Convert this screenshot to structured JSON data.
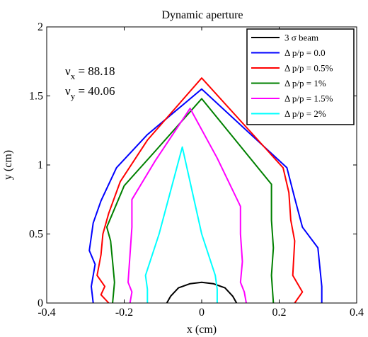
{
  "chart_data": {
    "type": "line",
    "title": "Dynamic aperture",
    "xlabel": "x (cm)",
    "ylabel": "y (cm)",
    "xlim": [
      -0.4,
      0.4
    ],
    "ylim": [
      0,
      2
    ],
    "xticks": [
      -0.4,
      -0.2,
      0,
      0.2,
      0.4
    ],
    "xtick_labels": [
      "-0.4",
      "-0.2",
      "0",
      "0.2",
      "0.4"
    ],
    "yticks": [
      0,
      0.5,
      1,
      1.5,
      2
    ],
    "ytick_labels": [
      "0",
      "0.5",
      "1",
      "1.5",
      "2"
    ],
    "grid": false,
    "legend_position": "top-right",
    "annotations": [
      {
        "symbol": "ν",
        "sub": "x",
        "rest": " = 88.18"
      },
      {
        "symbol": "ν",
        "sub": "y",
        "rest": " = 40.06"
      }
    ],
    "series": [
      {
        "name": "3 σ beam",
        "color": "#000000",
        "x": [
          -0.09,
          -0.08,
          -0.06,
          -0.03,
          0.0,
          0.03,
          0.06,
          0.08,
          0.09
        ],
        "y": [
          0.0,
          0.05,
          0.11,
          0.14,
          0.15,
          0.14,
          0.11,
          0.05,
          0.0
        ]
      },
      {
        "name": "Δ p/p = 0.0",
        "color": "#0000ff",
        "x": [
          -0.28,
          -0.285,
          -0.275,
          -0.29,
          -0.285,
          -0.28,
          -0.26,
          -0.22,
          -0.14,
          0.0,
          0.22,
          0.24,
          0.26,
          0.3,
          0.31,
          0.31
        ],
        "y": [
          0.0,
          0.12,
          0.28,
          0.38,
          0.48,
          0.58,
          0.74,
          0.98,
          1.22,
          1.55,
          0.98,
          0.76,
          0.55,
          0.4,
          0.12,
          0.0
        ]
      },
      {
        "name": "Δ p/p = 0.5%",
        "color": "#ff0000",
        "x": [
          -0.24,
          -0.26,
          -0.25,
          -0.27,
          -0.26,
          -0.255,
          -0.24,
          -0.21,
          -0.14,
          0.0,
          0.21,
          0.225,
          0.23,
          0.24,
          0.235,
          0.26,
          0.24
        ],
        "y": [
          0.0,
          0.06,
          0.12,
          0.2,
          0.35,
          0.5,
          0.65,
          0.88,
          1.18,
          1.63,
          0.98,
          0.8,
          0.6,
          0.45,
          0.2,
          0.08,
          0.0
        ]
      },
      {
        "name": "Δ p/p = 1%",
        "color": "#008000",
        "x": [
          -0.23,
          -0.225,
          -0.23,
          -0.235,
          -0.245,
          -0.2,
          -0.12,
          0.0,
          0.18,
          0.18,
          0.185,
          0.18,
          0.185
        ],
        "y": [
          0.0,
          0.15,
          0.3,
          0.45,
          0.55,
          0.85,
          1.1,
          1.48,
          0.86,
          0.6,
          0.4,
          0.2,
          0.0
        ]
      },
      {
        "name": "Δ p/p = 1.5%",
        "color": "#ff00ff",
        "x": [
          -0.185,
          -0.18,
          -0.19,
          -0.185,
          -0.18,
          -0.18,
          -0.12,
          -0.03,
          0.04,
          0.1,
          0.1,
          0.105,
          0.1,
          0.11,
          0.115
        ],
        "y": [
          0.0,
          0.08,
          0.15,
          0.35,
          0.55,
          0.75,
          1.03,
          1.41,
          1.05,
          0.7,
          0.5,
          0.3,
          0.15,
          0.08,
          0.0
        ]
      },
      {
        "name": "Δ p/p = 2%",
        "color": "#00ffff",
        "x": [
          -0.14,
          -0.14,
          -0.145,
          -0.11,
          -0.05,
          0.0,
          0.035,
          0.04,
          0.04
        ],
        "y": [
          0.0,
          0.1,
          0.2,
          0.5,
          1.13,
          0.5,
          0.2,
          0.1,
          0.0
        ]
      }
    ]
  }
}
